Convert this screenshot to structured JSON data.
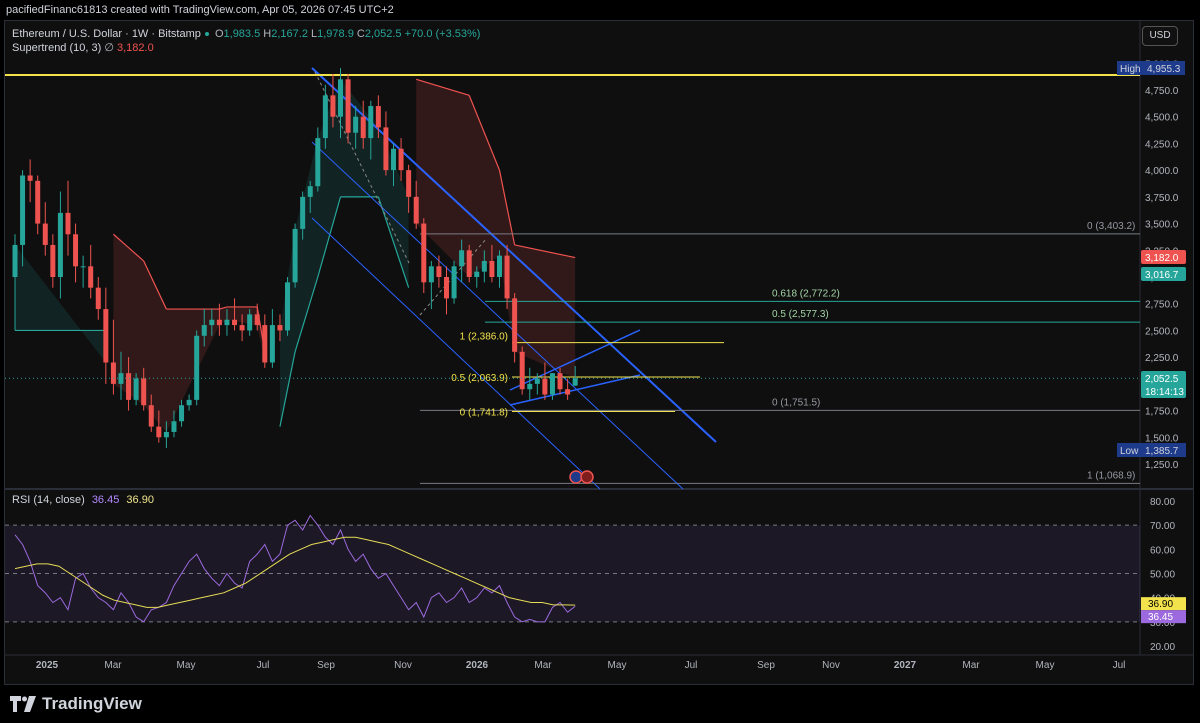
{
  "header": {
    "author_line": "pacifiedFinanc61813 created with TradingView.com, Apr 05, 2026 07:45 UTC+2",
    "symbol": "Ethereum / U.S. Dollar · 1W · Bitstamp",
    "o_label": "O",
    "o_value": "1,983.5",
    "h_label": "H",
    "h_value": "2,167.2",
    "l_label": "L",
    "l_value": "1,978.9",
    "c_label": "C",
    "c_value": "2,052.5",
    "change": "+70.0 (+3.53%)",
    "supertrend_label": "Supertrend (10, 3)",
    "supertrend_value": "3,182.0",
    "currency_button": "USD"
  },
  "rsi": {
    "label": "RSI (14, close)",
    "value": "36.45",
    "ma_value": "36.90",
    "axis_ticks": [
      "80.00",
      "70.00",
      "60.00",
      "50.00",
      "40.00",
      "30.00",
      "20.00"
    ],
    "rsi_badge": "36.45",
    "ma_badge": "36.90"
  },
  "chart_data": {
    "type": "candlestick",
    "price_axis_ticks": [
      "5,000.0",
      "4,750.0",
      "4,500.0",
      "4,250.0",
      "4,000.0",
      "3,750.0",
      "3,500.0",
      "3,250.0",
      "3,000.0",
      "2,750.0",
      "2,500.0",
      "2,250.0",
      "2,000.0",
      "1,750.0",
      "1,500.0",
      "1,250.0"
    ],
    "price_axis_values": [
      5000,
      4750,
      4500,
      4250,
      4000,
      3750,
      3500,
      3250,
      3000,
      2750,
      2500,
      2250,
      2000,
      1750,
      1500,
      1250
    ],
    "time_axis_labels": [
      "2025",
      "Mar",
      "May",
      "Jul",
      "Sep",
      "Nov",
      "2026",
      "Mar",
      "May",
      "Jul",
      "Sep",
      "Nov",
      "2027",
      "Mar",
      "May",
      "Jul"
    ],
    "badges": {
      "high_label": "High",
      "high_value": "4,955.3",
      "supertrend_value": "3,182.0",
      "green_value": "3,016.7",
      "last_price": "2,052.5",
      "countdown": "18:14:13",
      "low_label": "Low",
      "low_value": "1,385.7"
    },
    "fib_large": [
      {
        "level": "0 (3,403.2)",
        "price": 3403.2
      },
      {
        "level": "0.618 (2,772.2)",
        "price": 2772.2
      },
      {
        "level": "0.5 (2,577.3)",
        "price": 2577.3
      },
      {
        "level": "0 (1,751.5)",
        "price": 1751.5
      },
      {
        "level": "1 (1,068.9)",
        "price": 1068.9
      }
    ],
    "fib_small": [
      {
        "level": "1 (2,386.0)",
        "price": 2386.0
      },
      {
        "level": "0.5 (2,063.9)",
        "price": 2063.9
      },
      {
        "level": "0 (1,741.8)",
        "price": 1741.8
      }
    ],
    "candles": [
      [
        3000,
        3400,
        2500,
        3300
      ],
      [
        3300,
        4000,
        3100,
        3950
      ],
      [
        3950,
        4100,
        3700,
        3900
      ],
      [
        3900,
        3950,
        3400,
        3500
      ],
      [
        3500,
        3700,
        3200,
        3300
      ],
      [
        3300,
        3400,
        2900,
        3000
      ],
      [
        3000,
        3800,
        2800,
        3600
      ],
      [
        3600,
        3900,
        3200,
        3400
      ],
      [
        3400,
        3500,
        2950,
        3100
      ],
      [
        3100,
        3200,
        2900,
        3100
      ],
      [
        3100,
        3300,
        2800,
        2900
      ],
      [
        2900,
        3000,
        2600,
        2700
      ],
      [
        2700,
        2900,
        2000,
        2200
      ],
      [
        2200,
        2600,
        1900,
        2000
      ],
      [
        2000,
        2300,
        1850,
        2100
      ],
      [
        2100,
        2250,
        1750,
        1850
      ],
      [
        1850,
        2100,
        1800,
        2050
      ],
      [
        2050,
        2150,
        1750,
        1800
      ],
      [
        1800,
        1900,
        1550,
        1600
      ],
      [
        1600,
        1750,
        1450,
        1500
      ],
      [
        1500,
        1650,
        1400,
        1550
      ],
      [
        1550,
        1750,
        1500,
        1650
      ],
      [
        1650,
        1850,
        1600,
        1800
      ],
      [
        1800,
        1900,
        1750,
        1850
      ],
      [
        1850,
        2500,
        1800,
        2450
      ],
      [
        2450,
        2700,
        2350,
        2550
      ],
      [
        2550,
        2700,
        2450,
        2600
      ],
      [
        2600,
        2750,
        2450,
        2550
      ],
      [
        2550,
        2700,
        2450,
        2600
      ],
      [
        2600,
        2800,
        2500,
        2550
      ],
      [
        2550,
        2650,
        2400,
        2500
      ],
      [
        2500,
        2700,
        2450,
        2650
      ],
      [
        2650,
        2750,
        2500,
        2550
      ],
      [
        2550,
        2650,
        2150,
        2200
      ],
      [
        2200,
        2700,
        2150,
        2550
      ],
      [
        2550,
        2650,
        2400,
        2500
      ],
      [
        2500,
        3000,
        2450,
        2950
      ],
      [
        2950,
        3500,
        2900,
        3450
      ],
      [
        3450,
        3800,
        3350,
        3750
      ],
      [
        3750,
        3900,
        3600,
        3850
      ],
      [
        3850,
        4400,
        3800,
        4300
      ],
      [
        4300,
        4800,
        4200,
        4700
      ],
      [
        4700,
        4900,
        4400,
        4500
      ],
      [
        4500,
        4955,
        4300,
        4850
      ],
      [
        4850,
        4900,
        4250,
        4350
      ],
      [
        4350,
        4600,
        4200,
        4500
      ],
      [
        4500,
        4650,
        4200,
        4300
      ],
      [
        4300,
        4650,
        4100,
        4600
      ],
      [
        4600,
        4700,
        4300,
        4400
      ],
      [
        4400,
        4550,
        3950,
        4000
      ],
      [
        4000,
        4250,
        3850,
        4200
      ],
      [
        4200,
        4300,
        3900,
        4000
      ],
      [
        4000,
        4050,
        3600,
        3750
      ],
      [
        3750,
        3900,
        3450,
        3500
      ],
      [
        3500,
        3550,
        2850,
        2950
      ],
      [
        2950,
        3150,
        2700,
        3100
      ],
      [
        3100,
        3200,
        2900,
        3000
      ],
      [
        3000,
        3100,
        2650,
        2800
      ],
      [
        2800,
        3150,
        2750,
        3100
      ],
      [
        3100,
        3350,
        2950,
        3250
      ],
      [
        3250,
        3300,
        2950,
        3000
      ],
      [
        3000,
        3100,
        2900,
        3050
      ],
      [
        3050,
        3250,
        2950,
        3150
      ],
      [
        3150,
        3300,
        2950,
        3000
      ],
      [
        3000,
        3250,
        2900,
        3200
      ],
      [
        3200,
        3300,
        2700,
        2800
      ],
      [
        2800,
        2850,
        2200,
        2300
      ],
      [
        2300,
        2350,
        1900,
        1950
      ],
      [
        1950,
        2150,
        1850,
        2000
      ],
      [
        2000,
        2100,
        1900,
        2050
      ],
      [
        2050,
        2200,
        1850,
        1900
      ],
      [
        1900,
        2100,
        1850,
        2100
      ],
      [
        2100,
        2150,
        1900,
        1950
      ],
      [
        1950,
        2050,
        1850,
        1900
      ],
      [
        1983.5,
        2167.2,
        1978.9,
        2052.5
      ]
    ],
    "supertrend": [
      {
        "i": 0,
        "v": 2500,
        "dir": "up"
      },
      {
        "i": 12,
        "v": 2500,
        "dir": "up"
      },
      {
        "i": 13,
        "v": 3400,
        "dir": "down"
      },
      {
        "i": 17,
        "v": 3150,
        "dir": "down"
      },
      {
        "i": 20,
        "v": 2700,
        "dir": "down"
      },
      {
        "i": 27,
        "v": 2700,
        "dir": "down"
      },
      {
        "i": 28,
        "v": 2720,
        "dir": "down"
      },
      {
        "i": 32,
        "v": 2720,
        "dir": "down"
      },
      {
        "i": 33,
        "v": 2300,
        "dir": "down"
      },
      {
        "i": 35,
        "v": 1600,
        "dir": "up"
      },
      {
        "i": 37,
        "v": 2300,
        "dir": "up"
      },
      {
        "i": 40,
        "v": 3000,
        "dir": "up"
      },
      {
        "i": 43,
        "v": 3750,
        "dir": "up"
      },
      {
        "i": 48,
        "v": 3750,
        "dir": "up"
      },
      {
        "i": 52,
        "v": 2900,
        "dir": "up"
      },
      {
        "i": 53,
        "v": 4850,
        "dir": "down"
      },
      {
        "i": 60,
        "v": 4700,
        "dir": "down"
      },
      {
        "i": 64,
        "v": 4000,
        "dir": "down"
      },
      {
        "i": 66,
        "v": 3300,
        "dir": "down"
      },
      {
        "i": 74,
        "v": 3182,
        "dir": "down"
      }
    ],
    "rsi_values": [
      66,
      62,
      55,
      45,
      42,
      38,
      40,
      35,
      48,
      50,
      44,
      40,
      38,
      35,
      42,
      38,
      32,
      30,
      35,
      36,
      38,
      45,
      50,
      55,
      58,
      52,
      48,
      45,
      50,
      46,
      44,
      55,
      58,
      62,
      55,
      58,
      70,
      72,
      68,
      74,
      70,
      65,
      62,
      68,
      60,
      55,
      58,
      52,
      48,
      50,
      45,
      40,
      35,
      38,
      32,
      40,
      42,
      38,
      40,
      44,
      38,
      40,
      44,
      42,
      45,
      38,
      32,
      30,
      31,
      30,
      30,
      36,
      38,
      34,
      36.45
    ],
    "rsi_ma": [
      52,
      53,
      54,
      54,
      53,
      50,
      47,
      44,
      41,
      39,
      38,
      37,
      36,
      36,
      37,
      38,
      39,
      40,
      41,
      42,
      44,
      46,
      49,
      52,
      55,
      58,
      60,
      62,
      63,
      64,
      65,
      65,
      64,
      63,
      62,
      60,
      58,
      56,
      54,
      52,
      50,
      48,
      46,
      44,
      42,
      40,
      39,
      38,
      38,
      37,
      37,
      36.9
    ]
  }
}
